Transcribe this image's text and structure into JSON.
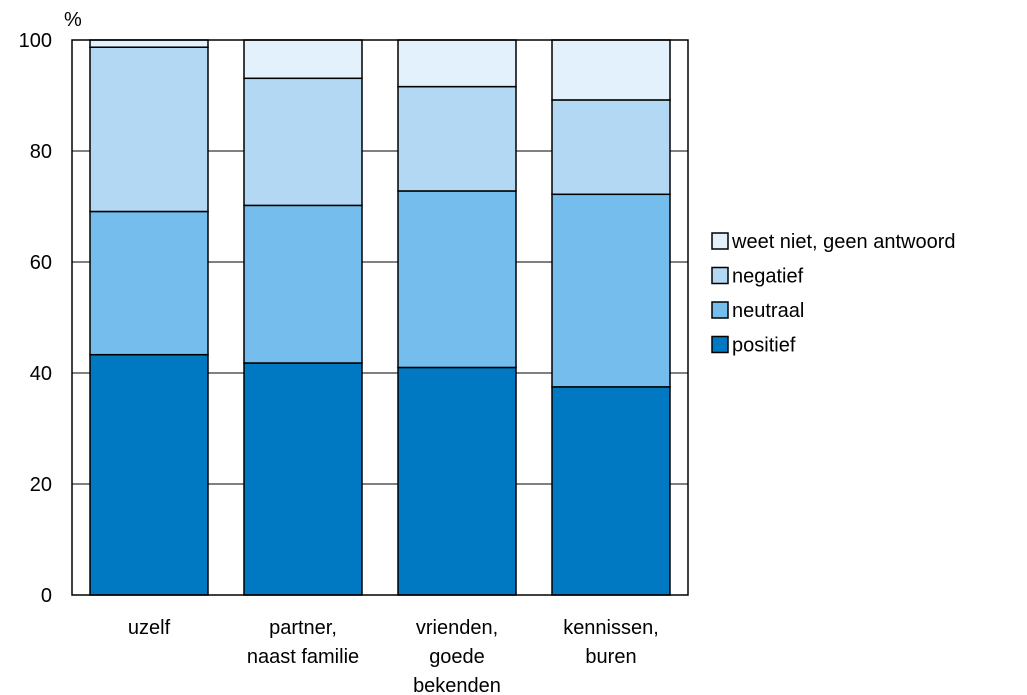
{
  "chart_data": {
    "type": "bar",
    "stacked": true,
    "ylabel": "%",
    "ylim": [
      0,
      100
    ],
    "yticks": [
      0,
      20,
      40,
      60,
      80,
      100
    ],
    "grid": true,
    "legend_position": "right",
    "categories": [
      [
        "uzelf"
      ],
      [
        "partner,",
        "naast familie"
      ],
      [
        "vrienden,",
        "goede",
        "bekenden"
      ],
      [
        "kennissen,",
        "buren"
      ]
    ],
    "series": [
      {
        "name": "positief",
        "color": "#0079c2",
        "values": [
          43.3,
          41.8,
          41.0,
          37.5
        ]
      },
      {
        "name": "neutraal",
        "color": "#74bdec",
        "values": [
          25.8,
          28.4,
          31.8,
          34.7
        ]
      },
      {
        "name": "negatief",
        "color": "#b3d8f3",
        "values": [
          29.6,
          22.9,
          18.8,
          17.0
        ]
      },
      {
        "name": "weet niet, geen antwoord",
        "color": "#e3f1fc",
        "values": [
          1.3,
          6.9,
          8.4,
          10.8
        ]
      }
    ]
  }
}
